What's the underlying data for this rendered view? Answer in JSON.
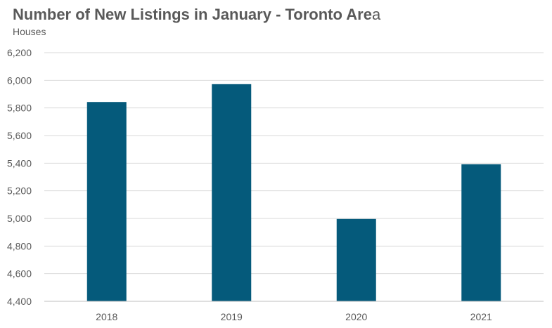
{
  "chart_data": {
    "type": "bar",
    "title_main": "Number of New Listings in January - Toronto Are",
    "title_tail": "a",
    "subtitle": "Houses",
    "categories": [
      "2018",
      "2019",
      "2020",
      "2021"
    ],
    "values": [
      5843,
      5972,
      4996,
      5392
    ],
    "ylim": [
      4400,
      6200
    ],
    "yticks": [
      "4,400",
      "4,600",
      "4,800",
      "5,000",
      "5,200",
      "5,400",
      "5,600",
      "5,800",
      "6,000",
      "6,200"
    ],
    "grid": true,
    "bar_color": "#055a7b",
    "grid_color": "#d9d9d9",
    "axis_color": "#bfbfbf"
  }
}
